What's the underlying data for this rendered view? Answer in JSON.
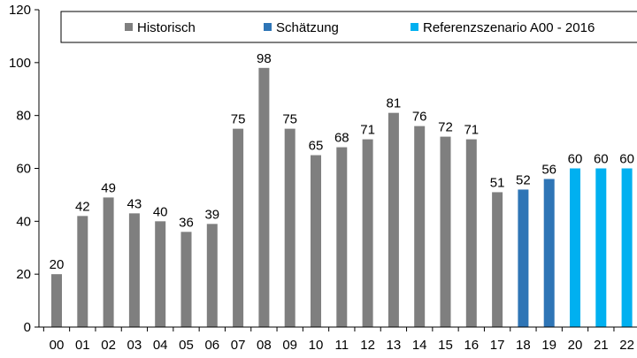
{
  "chart_data": {
    "type": "bar",
    "title": "",
    "xlabel": "",
    "ylabel": "",
    "ylim": [
      0,
      120
    ],
    "yticks": [
      0,
      20,
      40,
      60,
      80,
      100,
      120
    ],
    "grid": false,
    "legend_position": "top",
    "categories": [
      "00",
      "01",
      "02",
      "03",
      "04",
      "05",
      "06",
      "07",
      "08",
      "09",
      "10",
      "11",
      "12",
      "13",
      "14",
      "15",
      "16",
      "17",
      "18",
      "19",
      "20",
      "21",
      "22"
    ],
    "values": [
      20,
      42,
      49,
      43,
      40,
      36,
      39,
      75,
      98,
      75,
      65,
      68,
      71,
      81,
      76,
      72,
      71,
      51,
      52,
      56,
      60,
      60,
      60
    ],
    "series_index": [
      0,
      0,
      0,
      0,
      0,
      0,
      0,
      0,
      0,
      0,
      0,
      0,
      0,
      0,
      0,
      0,
      0,
      0,
      1,
      1,
      2,
      2,
      2
    ],
    "series": [
      {
        "name": "Historisch",
        "color": "#7f7f7f"
      },
      {
        "name": "Schätzung",
        "color": "#2e75b6"
      },
      {
        "name": "Referenzszenario A00 - 2016",
        "color": "#00b0f0"
      }
    ]
  }
}
